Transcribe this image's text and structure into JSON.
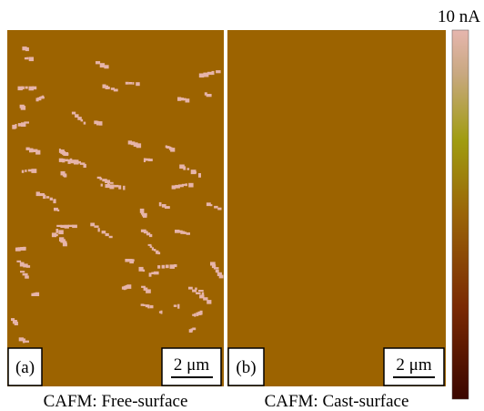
{
  "colorbar": {
    "label": "10 nA"
  },
  "panels": [
    {
      "label": "(a)",
      "scale_bar": "2 μm",
      "caption": "CAFM: Free-surface"
    },
    {
      "label": "(b)",
      "scale_bar": "2 μm",
      "caption": "CAFM: Cast-surface"
    }
  ]
}
